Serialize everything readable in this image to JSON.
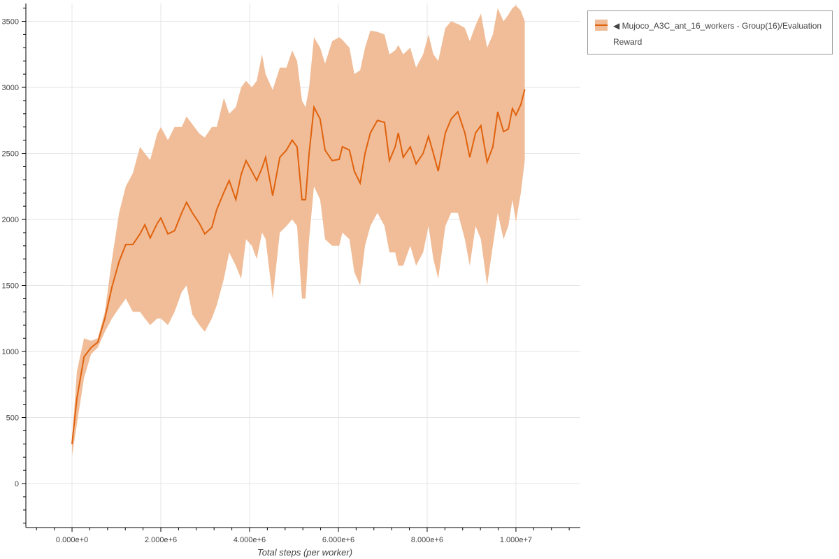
{
  "chart_data": {
    "type": "line",
    "title": "",
    "xlabel": "Total steps (per worker)",
    "ylabel": "",
    "xlim": [
      -1040000,
      11450000
    ],
    "ylim": [
      -333,
      3635
    ],
    "grid": true,
    "legend_position": "outside-right",
    "x_ticks": [
      0,
      2000000,
      4000000,
      6000000,
      8000000,
      10000000
    ],
    "x_tick_labels": [
      "0.000e+0",
      "2.000e+6",
      "4.000e+6",
      "6.000e+6",
      "8.000e+6",
      "1.000e+7"
    ],
    "y_ticks": [
      0,
      500,
      1000,
      1500,
      2000,
      2500,
      3000,
      3500
    ],
    "y_tick_labels": [
      "0",
      "500",
      "1000",
      "1500",
      "2000",
      "2500",
      "3000",
      "3500"
    ],
    "colors": {
      "line": "#e0620d",
      "band": "#f0bd98"
    },
    "series": [
      {
        "name": "◀ Mujoco_A3C_ant_16_workers - Group(16)/Evaluation Reward",
        "x": [
          0,
          110000,
          270000,
          430000,
          580000,
          740000,
          900000,
          1060000,
          1210000,
          1370000,
          1530000,
          1640000,
          1760000,
          1920000,
          2000000,
          2160000,
          2310000,
          2470000,
          2580000,
          2710000,
          2870000,
          2990000,
          3150000,
          3260000,
          3420000,
          3540000,
          3690000,
          3810000,
          3920000,
          4050000,
          4160000,
          4280000,
          4360000,
          4520000,
          4680000,
          4830000,
          4960000,
          5070000,
          5180000,
          5260000,
          5340000,
          5450000,
          5590000,
          5700000,
          5860000,
          6020000,
          6090000,
          6250000,
          6360000,
          6490000,
          6600000,
          6720000,
          6880000,
          7040000,
          7150000,
          7280000,
          7350000,
          7460000,
          7620000,
          7750000,
          7910000,
          8030000,
          8140000,
          8250000,
          8410000,
          8540000,
          8690000,
          8850000,
          8960000,
          9090000,
          9210000,
          9350000,
          9480000,
          9590000,
          9720000,
          9830000,
          9920000,
          10000000,
          10110000,
          10200000
        ],
        "mean": [
          300,
          645,
          960,
          1030,
          1070,
          1250,
          1490,
          1680,
          1810,
          1810,
          1890,
          1960,
          1860,
          1970,
          2010,
          1890,
          1915,
          2050,
          2130,
          2050,
          1970,
          1890,
          1940,
          2075,
          2205,
          2295,
          2150,
          2340,
          2445,
          2365,
          2295,
          2390,
          2470,
          2180,
          2470,
          2525,
          2600,
          2550,
          2150,
          2150,
          2500,
          2850,
          2760,
          2525,
          2445,
          2455,
          2550,
          2525,
          2365,
          2275,
          2500,
          2655,
          2750,
          2735,
          2445,
          2550,
          2655,
          2470,
          2550,
          2420,
          2500,
          2630,
          2500,
          2365,
          2655,
          2760,
          2815,
          2655,
          2470,
          2655,
          2710,
          2435,
          2550,
          2815,
          2665,
          2685,
          2840,
          2790,
          2870,
          2985
        ],
        "upper": [
          330,
          850,
          1100,
          1080,
          1100,
          1300,
          1700,
          2050,
          2250,
          2350,
          2550,
          2500,
          2450,
          2650,
          2700,
          2600,
          2700,
          2700,
          2780,
          2720,
          2650,
          2620,
          2700,
          2700,
          2920,
          2800,
          2850,
          3000,
          3050,
          3000,
          3050,
          3250,
          3100,
          2980,
          3150,
          3150,
          3280,
          3200,
          2900,
          2850,
          3000,
          3380,
          3300,
          3180,
          3350,
          3380,
          3360,
          3300,
          3100,
          3130,
          3300,
          3430,
          3420,
          3400,
          3250,
          3280,
          3320,
          3250,
          3300,
          3150,
          3250,
          3400,
          3250,
          3200,
          3450,
          3500,
          3480,
          3450,
          3350,
          3470,
          3560,
          3300,
          3400,
          3600,
          3500,
          3550,
          3600,
          3620,
          3580,
          3500
        ],
        "lower": [
          210,
          450,
          800,
          980,
          1030,
          1150,
          1250,
          1330,
          1400,
          1300,
          1300,
          1250,
          1200,
          1250,
          1250,
          1200,
          1300,
          1450,
          1500,
          1280,
          1200,
          1150,
          1250,
          1350,
          1550,
          1750,
          1650,
          1550,
          1850,
          1800,
          1700,
          1900,
          1850,
          1400,
          1900,
          1950,
          2000,
          1950,
          1400,
          1400,
          1850,
          2250,
          2150,
          1850,
          1800,
          1800,
          1900,
          1850,
          1600,
          1500,
          1800,
          1950,
          2050,
          1950,
          1750,
          1750,
          1650,
          1650,
          1800,
          1650,
          1750,
          1950,
          1700,
          1550,
          1950,
          2050,
          2050,
          1850,
          1650,
          1950,
          1850,
          1500,
          1800,
          2050,
          1850,
          1950,
          2150,
          1980,
          2200,
          2450
        ]
      }
    ]
  },
  "legend": {
    "entry": "◀ Mujoco_A3C_ant_16_workers - Group(16)/Evaluation Reward"
  }
}
